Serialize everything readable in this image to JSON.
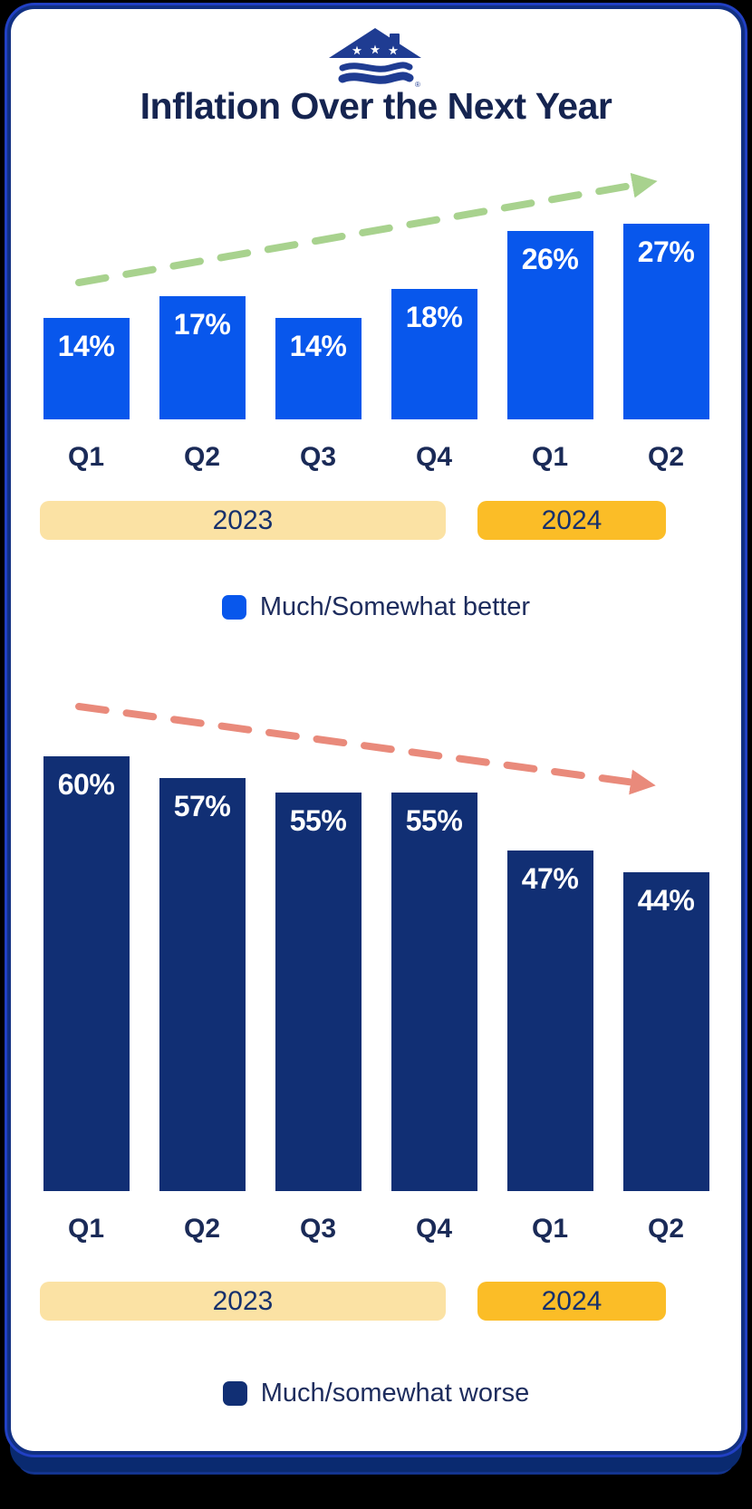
{
  "title": "Inflation Over the Next Year",
  "logo": {
    "name": "house-flag-logo",
    "color": "#1F3C92",
    "registered_mark": "®"
  },
  "colors": {
    "background": "#000000",
    "card": "#FFFFFF",
    "card_border": "#113082",
    "title_text": "#152450",
    "axis_text": "#1A2A57"
  },
  "chart_data": [
    {
      "type": "bar",
      "legend_label": "Much/Somewhat better",
      "legend_position": "bottom",
      "categories": [
        "Q1",
        "Q2",
        "Q3",
        "Q4",
        "Q1",
        "Q2"
      ],
      "values": [
        14,
        17,
        14,
        18,
        26,
        27
      ],
      "value_labels": [
        "14%",
        "17%",
        "14%",
        "18%",
        "26%",
        "27%"
      ],
      "unit": "%",
      "bar_color": "#0857EC",
      "year_bands": [
        {
          "label": "2023",
          "color": "#FBE2A4",
          "quarters": 4
        },
        {
          "label": "2024",
          "color": "#FBBD27",
          "quarters": 2
        }
      ],
      "trend_arrow": {
        "direction": "up",
        "color": "#A8D28E",
        "style": "dashed"
      },
      "ylim": [
        0,
        31
      ],
      "grid": false
    },
    {
      "type": "bar",
      "legend_label": "Much/somewhat worse",
      "legend_position": "bottom",
      "categories": [
        "Q1",
        "Q2",
        "Q3",
        "Q4",
        "Q1",
        "Q2"
      ],
      "values": [
        60,
        57,
        55,
        55,
        47,
        44
      ],
      "value_labels": [
        "60%",
        "57%",
        "55%",
        "55%",
        "47%",
        "44%"
      ],
      "unit": "%",
      "bar_color": "#112F74",
      "year_bands": [
        {
          "label": "2023",
          "color": "#FBE2A4",
          "quarters": 4
        },
        {
          "label": "2024",
          "color": "#FBBD27",
          "quarters": 2
        }
      ],
      "trend_arrow": {
        "direction": "down",
        "color": "#E98A7B",
        "style": "dashed"
      },
      "ylim": [
        0,
        65
      ],
      "grid": false
    }
  ]
}
